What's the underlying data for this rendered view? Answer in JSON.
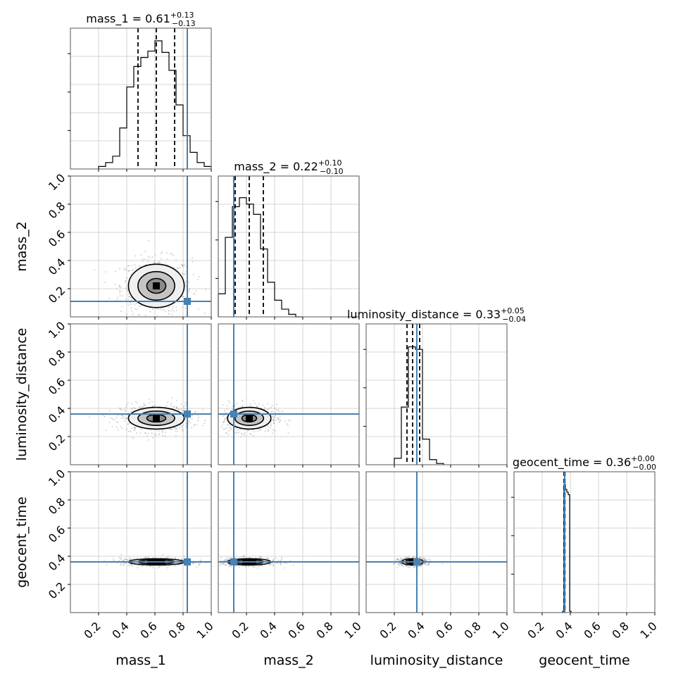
{
  "chart_data": {
    "type": "corner",
    "parameters": [
      "mass_1",
      "mass_2",
      "luminosity_distance",
      "geocent_time"
    ],
    "titles": [
      {
        "param": "mass_1",
        "label": "mass_1 = 0.61",
        "up": "+0.13",
        "lo": "−0.13"
      },
      {
        "param": "mass_2",
        "label": "mass_2 = 0.22",
        "up": "+0.10",
        "lo": "−0.10"
      },
      {
        "param": "luminosity_distance",
        "label": "luminosity_distance = 0.33",
        "up": "+0.05",
        "lo": "−0.04"
      },
      {
        "param": "geocent_time",
        "label": "geocent_time = 0.36",
        "up": "+0.00",
        "lo": "−0.00"
      }
    ],
    "axis_labels": [
      "mass_1",
      "mass_2",
      "luminosity_distance",
      "geocent_time"
    ],
    "range": [
      0,
      1
    ],
    "xticks": [
      "0.2",
      "0.4",
      "0.6",
      "0.8",
      "1.0"
    ],
    "yticks": [
      "0.2",
      "0.4",
      "0.6",
      "0.8",
      "1.0"
    ],
    "truths": [
      0.83,
      0.11,
      0.36,
      0.36
    ],
    "truth_color": "#4682b4",
    "grid": true,
    "medians": [
      0.61,
      0.22,
      0.33,
      0.36
    ],
    "quantiles": [
      [
        0.48,
        0.74
      ],
      [
        0.12,
        0.32
      ],
      [
        0.29,
        0.38
      ],
      [
        0.355,
        0.362
      ]
    ],
    "sigmas": [
      0.09,
      0.07,
      0.035,
      0.01
    ],
    "histograms": [
      {
        "param": "mass_1",
        "bin_edges": [
          0.2,
          0.25,
          0.3,
          0.35,
          0.4,
          0.45,
          0.5,
          0.55,
          0.6,
          0.65,
          0.7,
          0.75,
          0.8,
          0.85,
          0.9,
          0.95,
          1.0
        ],
        "counts": [
          0.02,
          0.05,
          0.1,
          0.32,
          0.64,
          0.8,
          0.87,
          0.92,
          1.0,
          0.91,
          0.77,
          0.5,
          0.26,
          0.13,
          0.05,
          0.02
        ]
      },
      {
        "param": "mass_2",
        "bin_edges": [
          0.0,
          0.05,
          0.1,
          0.15,
          0.2,
          0.25,
          0.3,
          0.35,
          0.4,
          0.45,
          0.5,
          0.55,
          0.6
        ],
        "counts": [
          0.18,
          0.62,
          0.86,
          0.93,
          0.88,
          0.8,
          0.53,
          0.27,
          0.13,
          0.06,
          0.02,
          0.0
        ]
      },
      {
        "param": "luminosity_distance",
        "bin_edges": [
          0.2,
          0.25,
          0.3,
          0.35,
          0.4,
          0.45,
          0.5,
          0.55
        ],
        "counts": [
          0.05,
          0.45,
          0.92,
          0.9,
          0.2,
          0.04,
          0.01
        ]
      },
      {
        "param": "geocent_time",
        "bin_edges": [
          0.345,
          0.355,
          0.365,
          0.375,
          0.385,
          0.395,
          0.405
        ],
        "counts": [
          0.01,
          1.0,
          0.96,
          0.94,
          0.92,
          0.01
        ]
      }
    ]
  }
}
